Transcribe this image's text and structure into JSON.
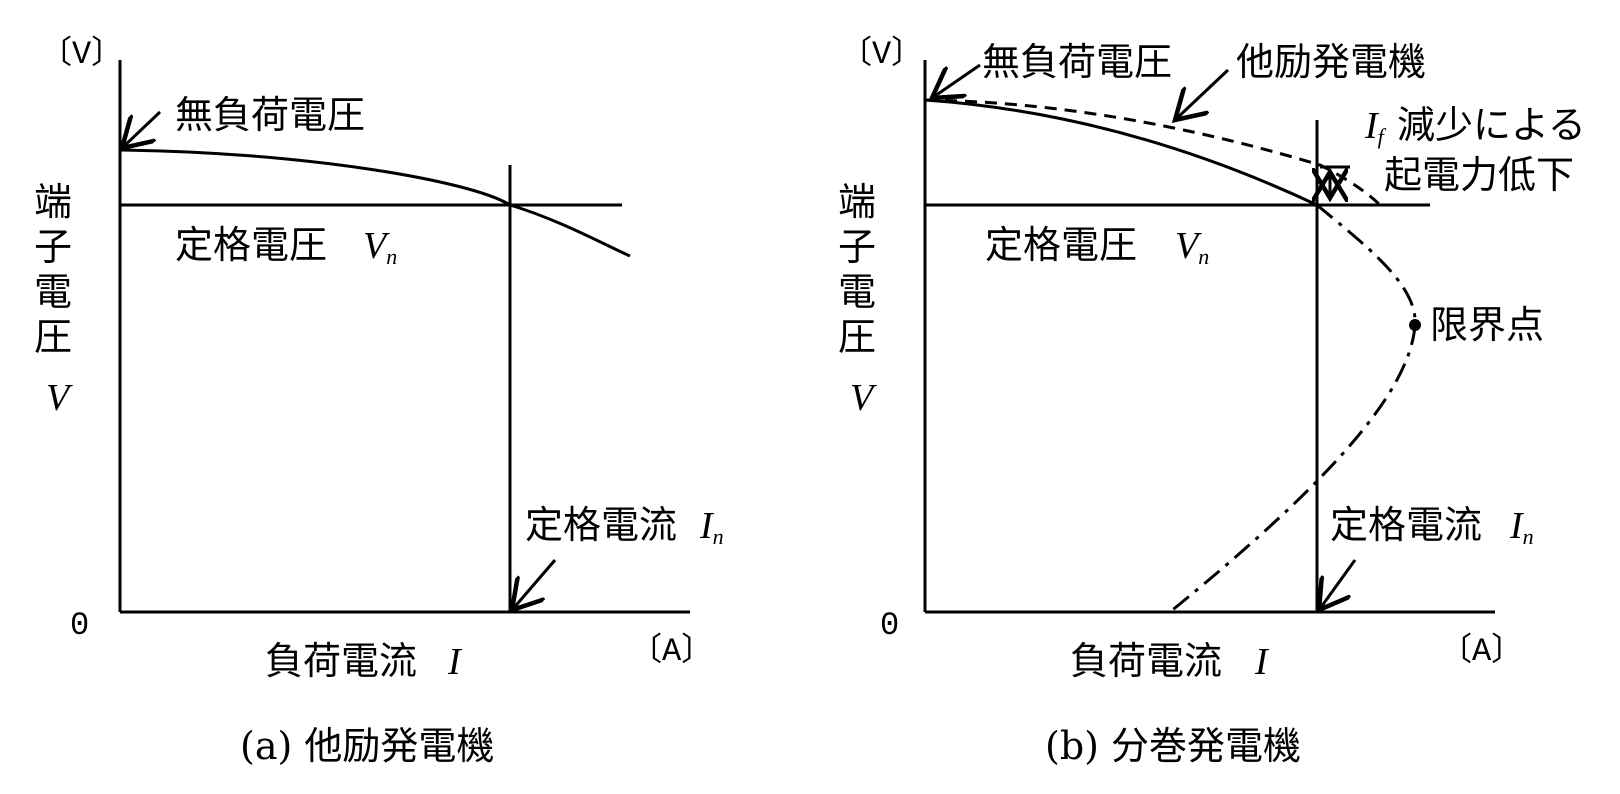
{
  "panel_a": {
    "unit_v": "〔V〕",
    "unit_a": "〔A〕",
    "origin": "0",
    "no_load_voltage": "無負荷電圧",
    "rated_voltage": "定格電圧",
    "rated_voltage_symbol": "V",
    "rated_voltage_subscript": "n",
    "rated_current": "定格電流",
    "rated_current_symbol": "I",
    "rated_current_subscript": "n",
    "y_label_chars": [
      "端",
      "子",
      "電",
      "圧"
    ],
    "y_symbol": "V",
    "x_label": "負荷電流",
    "x_symbol": "I",
    "caption": "(a) 他励発電機"
  },
  "panel_b": {
    "unit_v": "〔V〕",
    "unit_a": "〔A〕",
    "origin": "0",
    "no_load_voltage": "無負荷電圧",
    "separately_excited": "他励発電機",
    "drop_symbol": "I",
    "drop_subscript": "f",
    "drop_text_1": "減少による",
    "drop_text_2": "起電力低下",
    "rated_voltage": "定格電圧",
    "rated_voltage_symbol": "V",
    "rated_voltage_subscript": "n",
    "limit_point": "限界点",
    "rated_current": "定格電流",
    "rated_current_symbol": "I",
    "rated_current_subscript": "n",
    "y_label_chars": [
      "端",
      "子",
      "電",
      "圧"
    ],
    "y_symbol": "V",
    "x_label": "負荷電流",
    "x_symbol": "I",
    "caption": "(b) 分巻発電機"
  }
}
